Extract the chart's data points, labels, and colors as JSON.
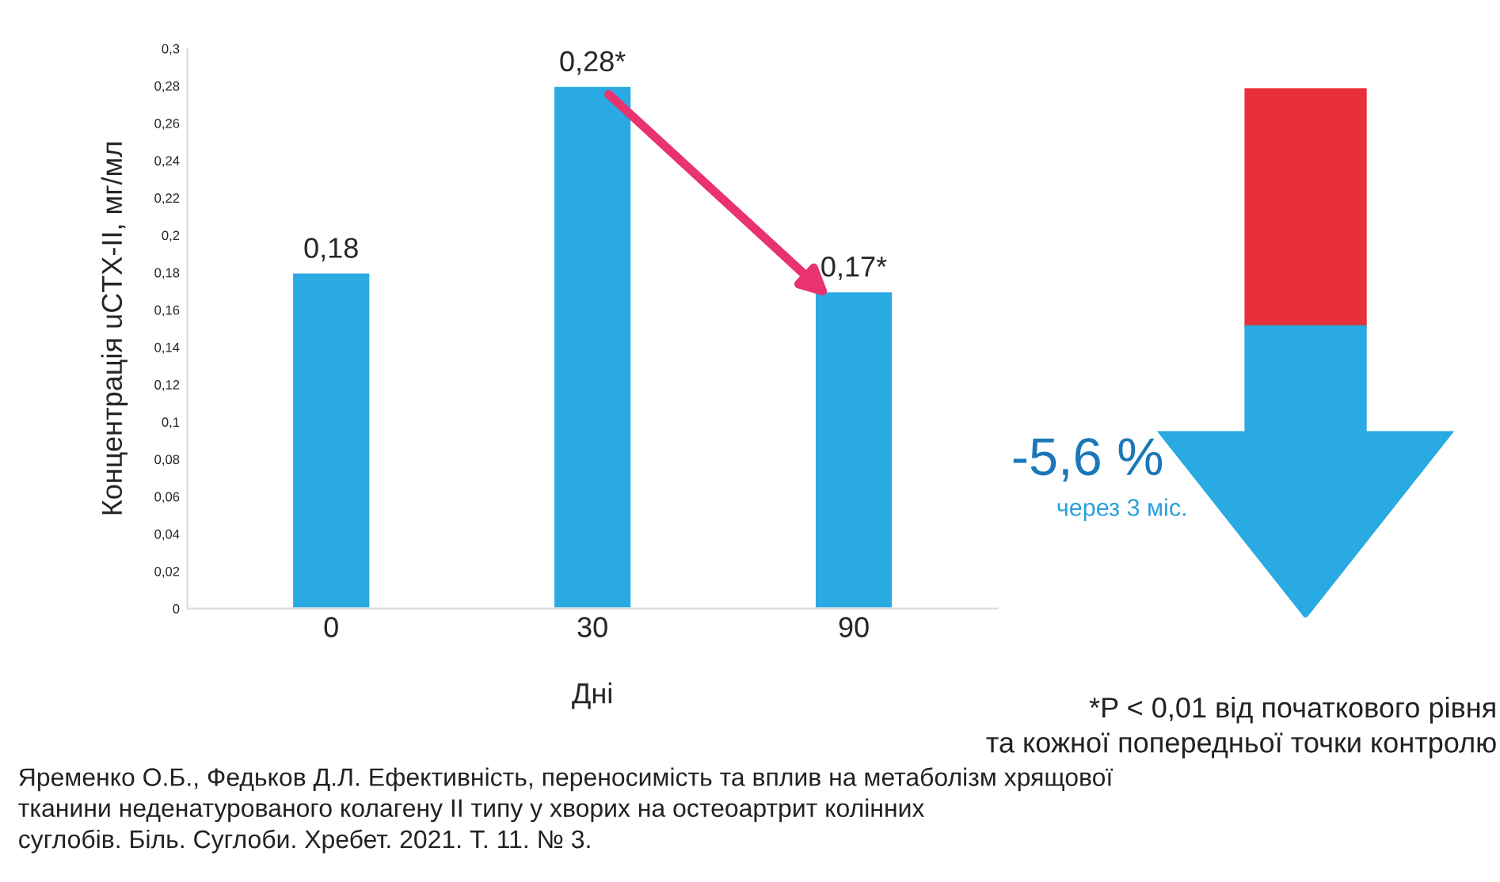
{
  "chart_data": {
    "type": "bar",
    "xlabel": "Дні",
    "ylabel": "Концентрація uCTX-II, мг/мл",
    "categories": [
      "0",
      "30",
      "90"
    ],
    "values": [
      0.18,
      0.28,
      0.17
    ],
    "value_labels": [
      "0,18",
      "0,28*",
      "0,17*"
    ],
    "color": "#29aae2",
    "ylim": [
      0,
      0.3
    ],
    "yticks": [
      {
        "value": 0,
        "label": "0"
      },
      {
        "value": 0.02,
        "label": "0,02"
      },
      {
        "value": 0.04,
        "label": "0,04"
      },
      {
        "value": 0.06,
        "label": "0,06"
      },
      {
        "value": 0.08,
        "label": "0,08"
      },
      {
        "value": 0.1,
        "label": "0,1"
      },
      {
        "value": 0.12,
        "label": "0,12"
      },
      {
        "value": 0.14,
        "label": "0,14"
      },
      {
        "value": 0.16,
        "label": "0,16"
      },
      {
        "value": 0.18,
        "label": "0,18"
      },
      {
        "value": 0.2,
        "label": "0,2"
      },
      {
        "value": 0.22,
        "label": "0,22"
      },
      {
        "value": 0.24,
        "label": "0,24"
      },
      {
        "value": 0.26,
        "label": "0,26"
      },
      {
        "value": 0.28,
        "label": "0,28"
      },
      {
        "value": 0.3,
        "label": "0,3"
      }
    ],
    "grid": false,
    "annotations": [
      "-5,6 %",
      "через 3 міс.",
      "*P < 0,01 від початкового рівня\nта кожної попередньої точки контролю",
      "Яременко О.Б., Федьков Д.Л. Ефективність, переносимість та вплив на метаболізм хрящової\nтканини неденатурованого колагену II типу у хворих на остеоартрит колінних\nсуглобів. Біль. Суглоби. Хребет. 2021. Т. 11. № 3."
    ]
  }
}
